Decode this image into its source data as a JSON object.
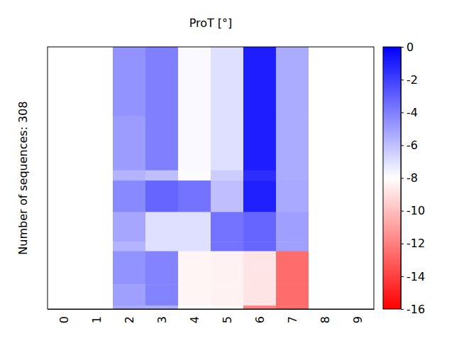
{
  "chart_data": {
    "type": "heatmap",
    "title": "ProT [°]",
    "y_label": "Number of sequences: 308",
    "categories": [
      "0",
      "1",
      "2",
      "3",
      "4",
      "5",
      "6",
      "7",
      "8",
      "9"
    ],
    "ylim": [
      0,
      308
    ],
    "y_edges": [
      0,
      81,
      145,
      157,
      194,
      229,
      240,
      279,
      304,
      308
    ],
    "cells": [
      [
        null,
        null,
        -4.6,
        -4.0,
        -7.8,
        -7.0,
        -0.9,
        -5.4,
        null,
        null
      ],
      [
        null,
        null,
        -4.9,
        -4.0,
        -7.8,
        -7.0,
        -0.9,
        -5.4,
        null,
        null
      ],
      [
        null,
        null,
        -5.6,
        -6.0,
        -7.9,
        -6.4,
        -1.4,
        -5.4,
        null,
        null
      ],
      [
        null,
        null,
        -4.3,
        -3.2,
        -3.6,
        -6.0,
        -1.0,
        -5.3,
        null,
        null
      ],
      [
        null,
        null,
        -5.2,
        -7.0,
        -7.0,
        -3.6,
        -3.2,
        -5.0,
        null,
        null
      ],
      [
        null,
        null,
        -5.6,
        -7.0,
        -7.0,
        -3.6,
        -3.2,
        -5.0,
        null,
        null
      ],
      [
        null,
        null,
        -4.6,
        -4.1,
        -8.3,
        -8.4,
        -8.8,
        -12.6,
        null,
        null
      ],
      [
        null,
        null,
        -5.0,
        -4.1,
        -8.3,
        -8.4,
        -8.8,
        -12.6,
        null,
        null
      ],
      [
        null,
        null,
        -5.3,
        -5.5,
        -8.0,
        -8.2,
        -12.0,
        -12.6,
        null,
        null
      ]
    ],
    "colorbar": {
      "range": [
        -16,
        0
      ],
      "ticks": [
        0,
        -2,
        -4,
        -6,
        -8,
        -10,
        -12,
        -14,
        -16
      ]
    },
    "tick_labels": "x"
  }
}
